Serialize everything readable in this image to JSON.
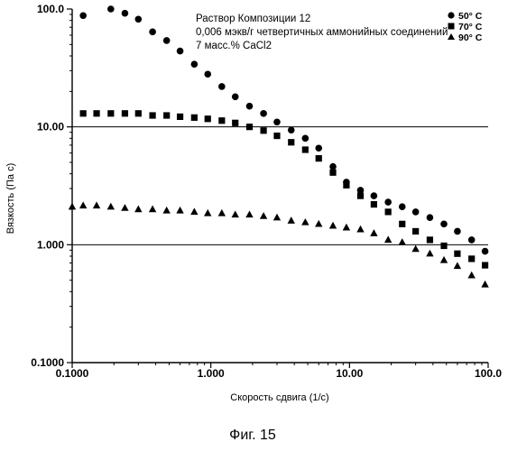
{
  "chart_data": {
    "type": "scatter",
    "x_scale": "log",
    "y_scale": "log",
    "xlim": [
      0.1,
      100.0
    ],
    "ylim": [
      0.1,
      100.0
    ],
    "xlabel": "Скорость сдвига (1/с)",
    "ylabel": "Вязкость (Па с)",
    "x_tick_labels": [
      "0.1000",
      "1.000",
      "10.00",
      "100.0"
    ],
    "y_tick_labels": [
      "100.0",
      "10.00",
      "1.000",
      "0.1000"
    ],
    "grid": "horizontal lines at 1.0 and 10.0",
    "annotation_lines": [
      "Раствор Композиции 12",
      "0,006 мэкв/г четвертичных аммонийных соединений",
      "7 масс.% CaCl2"
    ],
    "legend_position": "top-right",
    "figure_caption": "Фиг. 15",
    "series": [
      {
        "name": "50° C",
        "marker": "circle",
        "points": [
          [
            0.12,
            88
          ],
          [
            0.19,
            100
          ],
          [
            0.24,
            92
          ],
          [
            0.3,
            82
          ],
          [
            0.38,
            64
          ],
          [
            0.48,
            54
          ],
          [
            0.6,
            44
          ],
          [
            0.76,
            34
          ],
          [
            0.95,
            28
          ],
          [
            1.2,
            22
          ],
          [
            1.5,
            18
          ],
          [
            1.9,
            15
          ],
          [
            2.4,
            13
          ],
          [
            3.0,
            11
          ],
          [
            3.8,
            9.4
          ],
          [
            4.8,
            8.0
          ],
          [
            6.0,
            6.6
          ],
          [
            7.6,
            4.6
          ],
          [
            9.5,
            3.4
          ],
          [
            12,
            2.9
          ],
          [
            15,
            2.6
          ],
          [
            19,
            2.3
          ],
          [
            24,
            2.1
          ],
          [
            30,
            1.9
          ],
          [
            38,
            1.7
          ],
          [
            48,
            1.5
          ],
          [
            60,
            1.3
          ],
          [
            76,
            1.1
          ],
          [
            95,
            0.88
          ]
        ]
      },
      {
        "name": "70° C",
        "marker": "square",
        "points": [
          [
            0.12,
            13
          ],
          [
            0.15,
            13
          ],
          [
            0.19,
            13
          ],
          [
            0.24,
            13
          ],
          [
            0.3,
            13
          ],
          [
            0.38,
            12.5
          ],
          [
            0.48,
            12.5
          ],
          [
            0.6,
            12.2
          ],
          [
            0.76,
            12
          ],
          [
            0.95,
            11.7
          ],
          [
            1.2,
            11.3
          ],
          [
            1.5,
            10.8
          ],
          [
            1.9,
            10
          ],
          [
            2.4,
            9.3
          ],
          [
            3.0,
            8.4
          ],
          [
            3.8,
            7.4
          ],
          [
            4.8,
            6.4
          ],
          [
            6.0,
            5.4
          ],
          [
            7.6,
            4.1
          ],
          [
            9.5,
            3.2
          ],
          [
            12,
            2.6
          ],
          [
            15,
            2.2
          ],
          [
            19,
            1.9
          ],
          [
            24,
            1.5
          ],
          [
            30,
            1.3
          ],
          [
            38,
            1.1
          ],
          [
            48,
            0.98
          ],
          [
            60,
            0.84
          ],
          [
            76,
            0.76
          ],
          [
            95,
            0.67
          ]
        ]
      },
      {
        "name": "90° C",
        "marker": "triangle",
        "points": [
          [
            0.1,
            2.1
          ],
          [
            0.12,
            2.15
          ],
          [
            0.15,
            2.15
          ],
          [
            0.19,
            2.1
          ],
          [
            0.24,
            2.05
          ],
          [
            0.3,
            2.0
          ],
          [
            0.38,
            2.0
          ],
          [
            0.48,
            1.95
          ],
          [
            0.6,
            1.95
          ],
          [
            0.76,
            1.9
          ],
          [
            0.95,
            1.85
          ],
          [
            1.2,
            1.85
          ],
          [
            1.5,
            1.8
          ],
          [
            1.9,
            1.8
          ],
          [
            2.4,
            1.75
          ],
          [
            3.0,
            1.7
          ],
          [
            3.8,
            1.6
          ],
          [
            4.8,
            1.55
          ],
          [
            6.0,
            1.5
          ],
          [
            7.6,
            1.45
          ],
          [
            9.5,
            1.4
          ],
          [
            12,
            1.35
          ],
          [
            15,
            1.25
          ],
          [
            19,
            1.1
          ],
          [
            24,
            1.05
          ],
          [
            30,
            0.92
          ],
          [
            38,
            0.84
          ],
          [
            48,
            0.74
          ],
          [
            60,
            0.66
          ],
          [
            76,
            0.55
          ],
          [
            95,
            0.46
          ]
        ]
      }
    ]
  }
}
